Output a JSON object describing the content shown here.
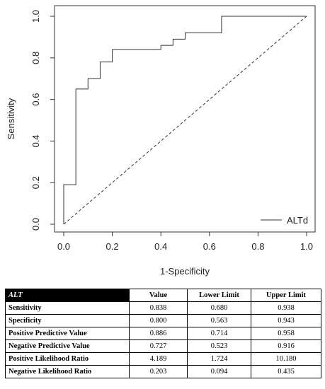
{
  "chart_data": {
    "type": "line",
    "xlabel": "1-Specificity",
    "ylabel": "Sensitivity",
    "xlim": [
      0,
      1
    ],
    "ylim": [
      0,
      1
    ],
    "x_ticks": [
      "0.0",
      "0.2",
      "0.4",
      "0.6",
      "0.8",
      "1.0"
    ],
    "y_ticks": [
      "0.0",
      "0.2",
      "0.4",
      "0.6",
      "0.8",
      "1.0"
    ],
    "grid": false,
    "legend_position": "bottom-right",
    "series": [
      {
        "name": "ALTd",
        "style": "step",
        "color": "#333333",
        "x": [
          0.0,
          0.0,
          0.05,
          0.05,
          0.1,
          0.1,
          0.15,
          0.15,
          0.2,
          0.2,
          0.4,
          0.4,
          0.45,
          0.45,
          0.5,
          0.5,
          0.65,
          0.65,
          1.0
        ],
        "y": [
          0.0,
          0.19,
          0.19,
          0.65,
          0.65,
          0.7,
          0.7,
          0.78,
          0.78,
          0.84,
          0.84,
          0.86,
          0.86,
          0.89,
          0.89,
          0.92,
          0.92,
          1.0,
          1.0
        ]
      }
    ],
    "reference_line": {
      "style": "dashed",
      "x": [
        0,
        1
      ],
      "y": [
        0,
        1
      ]
    }
  },
  "table": {
    "headers": [
      "ALT",
      "Value",
      "Lower Limit",
      "Upper Limit"
    ],
    "rows": [
      {
        "label": "Sensitivity",
        "value": "0.838",
        "lower": "0.680",
        "upper": "0.938"
      },
      {
        "label": "Specificity",
        "value": "0.800",
        "lower": "0.563",
        "upper": "0.943"
      },
      {
        "label": "Positive Predictive Value",
        "value": "0.886",
        "lower": "0.714",
        "upper": "0.958"
      },
      {
        "label": "Negative Predictive Value",
        "value": "0.727",
        "lower": "0.523",
        "upper": "0.916"
      },
      {
        "label": "Positive Likelihood Ratio",
        "value": "4.189",
        "lower": "1.724",
        "upper": "10.180"
      },
      {
        "label": "Negative Likelihood Ratio",
        "value": "0.203",
        "lower": "0.094",
        "upper": "0.435"
      }
    ]
  }
}
